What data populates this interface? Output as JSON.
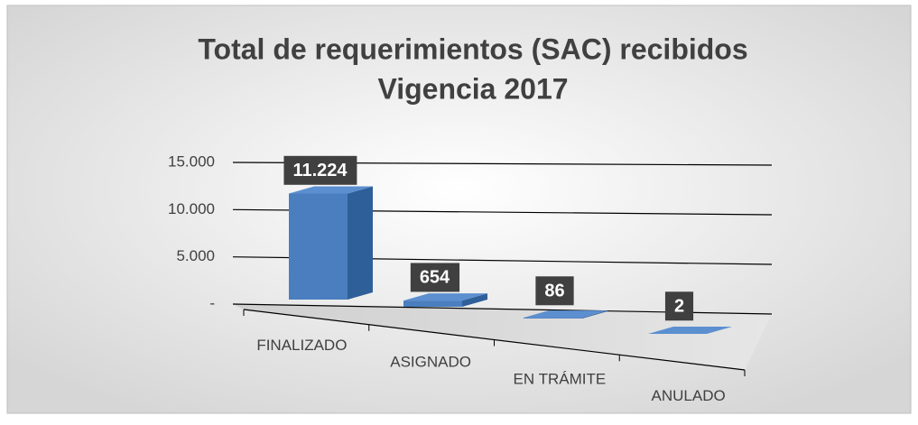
{
  "chart_data": {
    "type": "bar3d",
    "title": "Total de requerimientos (SAC) recibidos",
    "subtitle": "Vigencia 2017",
    "categories": [
      "FINALIZADO",
      "ASIGNADO",
      "EN TRÁMITE",
      "ANULADO"
    ],
    "values": [
      11224,
      654,
      86,
      2
    ],
    "value_labels": [
      "11.224",
      "654",
      "86",
      "2"
    ],
    "color": "#4a7ebf",
    "ylim": [
      0,
      15000
    ],
    "yticks": [
      {
        "value": 0,
        "label": "-"
      },
      {
        "value": 5000,
        "label": "5.000"
      },
      {
        "value": 10000,
        "label": "10.000"
      },
      {
        "value": 15000,
        "label": "15.000"
      }
    ],
    "grid": true
  }
}
